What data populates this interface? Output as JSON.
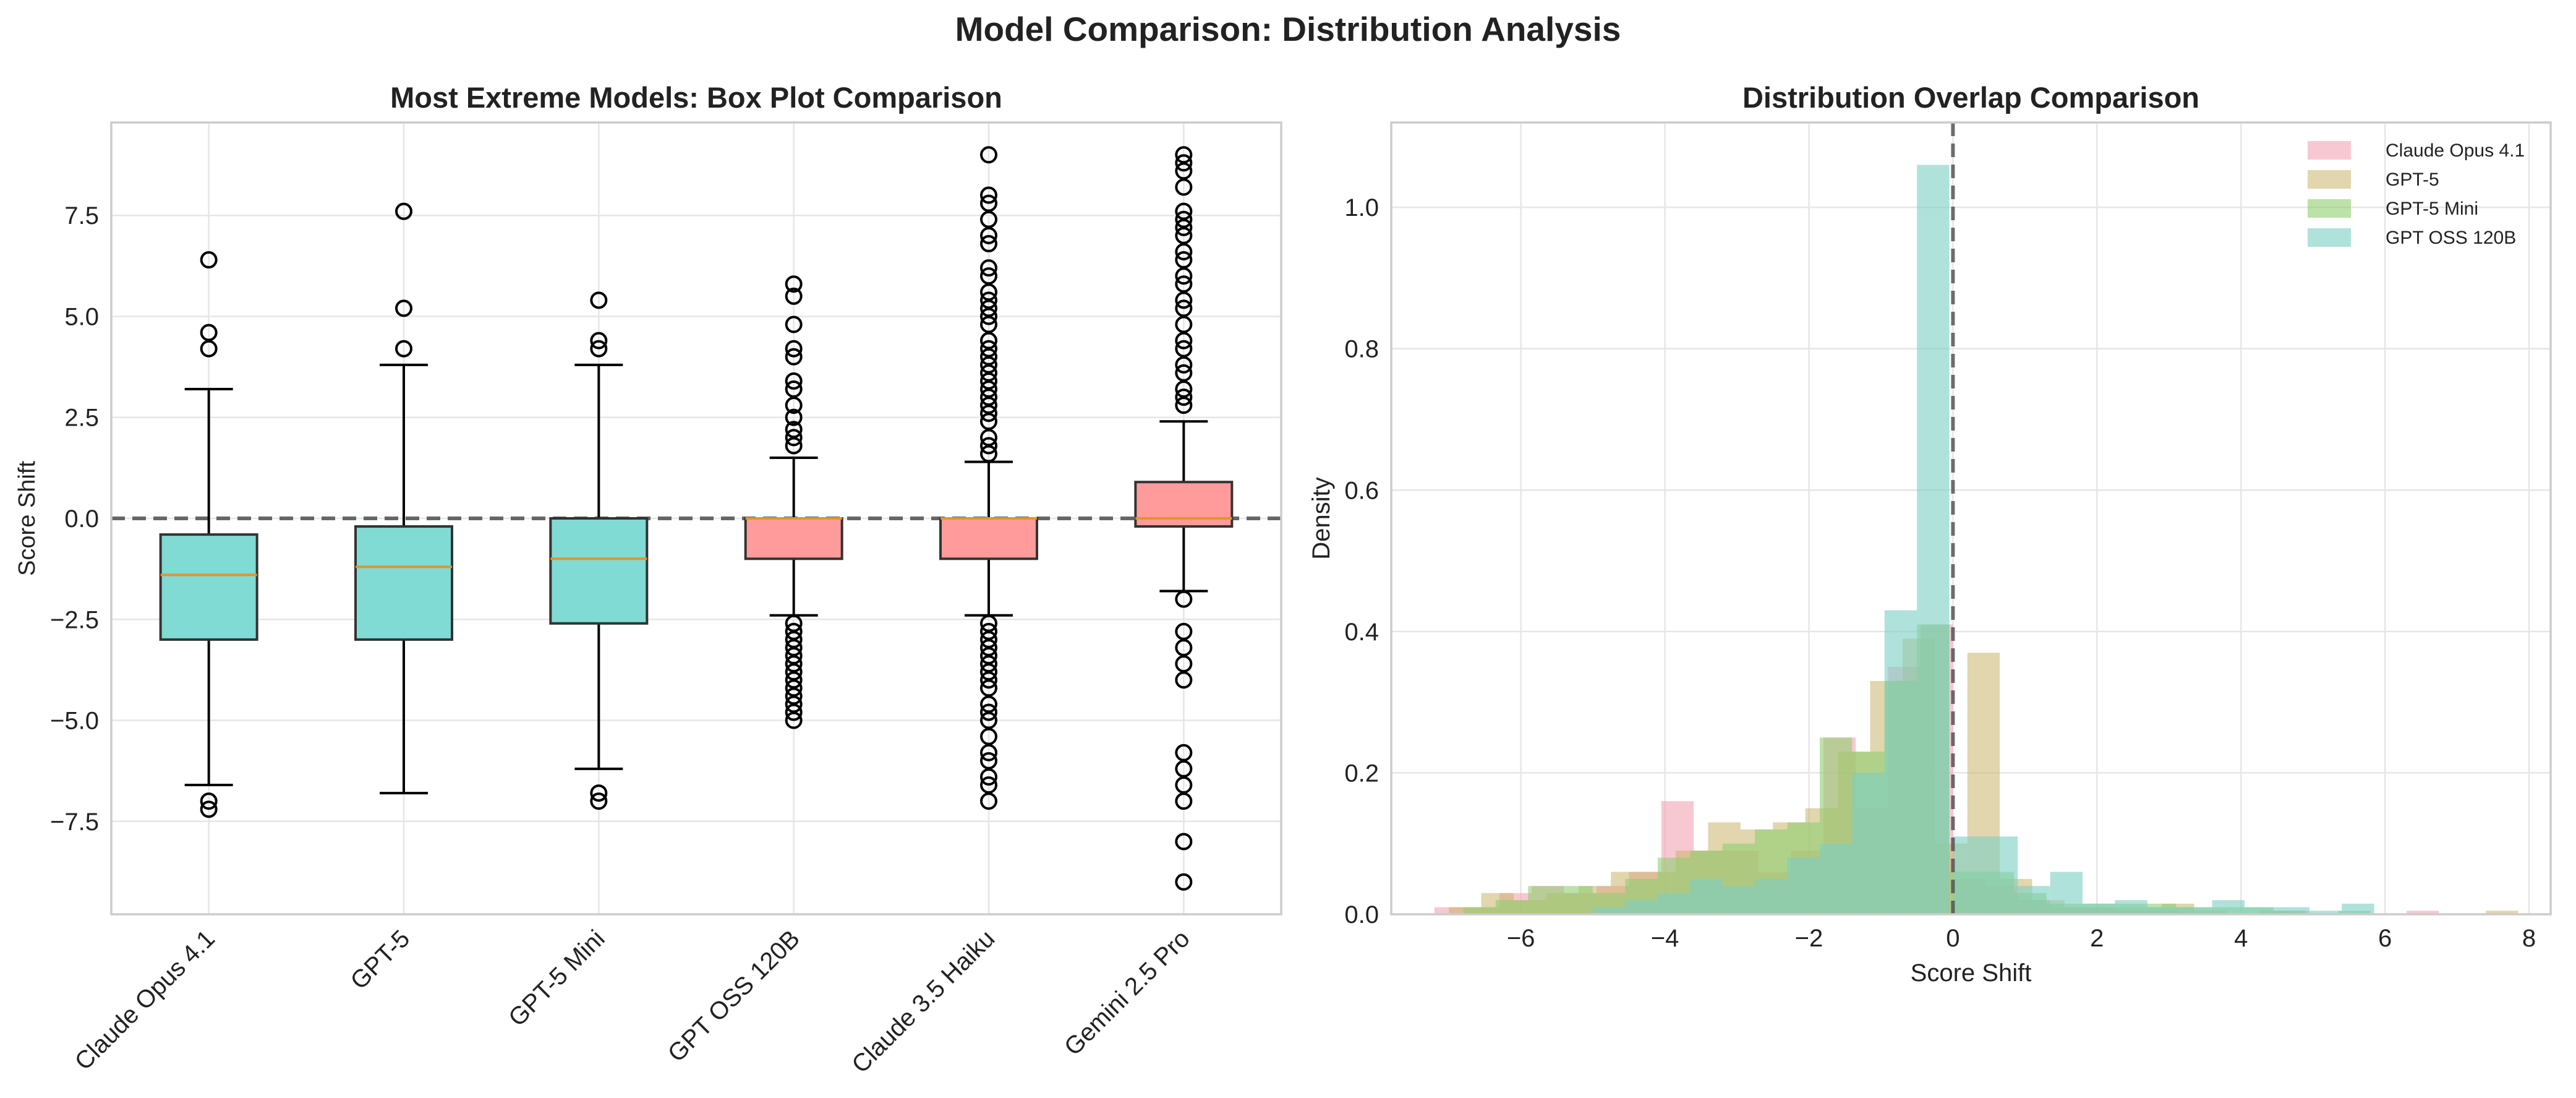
{
  "figure_title": "Model Comparison: Distribution Analysis",
  "chart_data": [
    {
      "type": "box",
      "title": "Most Extreme Models: Box Plot Comparison",
      "xlabel": "",
      "ylabel": "Score Shift",
      "ylim": [
        -9.8,
        9.8
      ],
      "yticks": [
        7.5,
        5.0,
        2.5,
        0.0,
        -2.5,
        -5.0,
        -7.5
      ],
      "ytick_labels": [
        "7.5",
        "5.0",
        "2.5",
        "0.0",
        "−2.5",
        "−5.0",
        "−7.5"
      ],
      "reference_line": 0,
      "grid": true,
      "colors": {
        "box_a": "#7fdbd3",
        "box_b": "#ff9b9b",
        "median": "#e0952e",
        "edge": "#333333",
        "ref": "#666666"
      },
      "boxes": [
        {
          "category": "Claude Opus 4.1",
          "q1": -3.0,
          "median": -1.4,
          "q3": -0.4,
          "whisker_low": -6.6,
          "whisker_high": 3.2,
          "color": "box_a",
          "outliers": [
            6.4,
            4.6,
            4.2,
            -7.0,
            -7.2
          ]
        },
        {
          "category": "GPT-5",
          "q1": -3.0,
          "median": -1.2,
          "q3": -0.2,
          "whisker_low": -6.8,
          "whisker_high": 3.8,
          "color": "box_a",
          "outliers": [
            7.6,
            5.2,
            4.2
          ]
        },
        {
          "category": "GPT-5 Mini",
          "q1": -2.6,
          "median": -1.0,
          "q3": 0.0,
          "whisker_low": -6.2,
          "whisker_high": 3.8,
          "color": "box_a",
          "outliers": [
            5.4,
            4.4,
            4.2,
            -6.8,
            -7.0
          ]
        },
        {
          "category": "GPT OSS 120B",
          "q1": -1.0,
          "median": 0.0,
          "q3": 0.0,
          "whisker_low": -2.4,
          "whisker_high": 1.5,
          "color": "box_b",
          "outliers": [
            5.8,
            5.5,
            4.8,
            4.2,
            4.0,
            3.4,
            3.2,
            2.8,
            2.5,
            2.2,
            2.0,
            1.8,
            -2.6,
            -2.8,
            -3.0,
            -3.2,
            -3.4,
            -3.6,
            -3.8,
            -4.0,
            -4.2,
            -4.4,
            -4.6,
            -4.8,
            -5.0
          ]
        },
        {
          "category": "Claude 3.5 Haiku",
          "q1": -1.0,
          "median": 0.0,
          "q3": 0.0,
          "whisker_low": -2.4,
          "whisker_high": 1.4,
          "color": "box_b",
          "outliers": [
            9.0,
            8.0,
            7.8,
            7.4,
            7.0,
            6.8,
            6.2,
            6.0,
            5.6,
            5.4,
            5.2,
            5.0,
            4.8,
            4.4,
            4.2,
            4.0,
            3.8,
            3.6,
            3.4,
            3.2,
            3.0,
            2.8,
            2.6,
            2.4,
            2.0,
            1.8,
            1.6,
            -2.6,
            -2.8,
            -3.0,
            -3.2,
            -3.4,
            -3.6,
            -3.8,
            -4.0,
            -4.2,
            -4.6,
            -4.8,
            -5.0,
            -5.4,
            -5.8,
            -6.0,
            -6.4,
            -6.6,
            -7.0
          ]
        },
        {
          "category": "Gemini 2.5 Pro",
          "q1": -0.2,
          "median": 0.0,
          "q3": 0.9,
          "whisker_low": -1.8,
          "whisker_high": 2.4,
          "color": "box_b",
          "outliers": [
            9.0,
            8.8,
            8.6,
            8.2,
            7.6,
            7.4,
            7.2,
            7.0,
            6.6,
            6.4,
            6.0,
            5.8,
            5.4,
            5.2,
            4.8,
            4.4,
            4.2,
            3.8,
            3.6,
            3.2,
            3.0,
            2.8,
            -2.0,
            -2.8,
            -3.2,
            -3.6,
            -4.0,
            -5.8,
            -6.2,
            -6.6,
            -7.0,
            -8.0,
            -9.0
          ]
        }
      ]
    },
    {
      "type": "histogram",
      "title": "Distribution Overlap Comparison",
      "xlabel": "Score Shift",
      "ylabel": "Density",
      "xlim": [
        -7.8,
        8.3
      ],
      "ylim": [
        0,
        1.12
      ],
      "xticks": [
        -6,
        -4,
        -2,
        0,
        2,
        4,
        6,
        8
      ],
      "xtick_labels": [
        "−6",
        "−4",
        "−2",
        "0",
        "2",
        "4",
        "6",
        "8"
      ],
      "yticks": [
        0.0,
        0.2,
        0.4,
        0.6,
        0.8,
        1.0
      ],
      "ytick_labels": [
        "0.0",
        "0.2",
        "0.4",
        "0.6",
        "0.8",
        "1.0"
      ],
      "reference_line": 0,
      "grid": true,
      "legend_position": "top-right",
      "series": [
        {
          "name": "Claude Opus 4.1",
          "color": "#f4a3b4",
          "opacity": 0.6,
          "bin_width": 0.45,
          "bins": [
            [
              -7.2,
              0.01
            ],
            [
              -6.75,
              0.01
            ],
            [
              -6.3,
              0.03
            ],
            [
              -5.85,
              0.04
            ],
            [
              -5.4,
              0.03
            ],
            [
              -4.95,
              0.04
            ],
            [
              -4.5,
              0.06
            ],
            [
              -4.05,
              0.16
            ],
            [
              -3.6,
              0.09
            ],
            [
              -3.15,
              0.09
            ],
            [
              -2.7,
              0.06
            ],
            [
              -2.25,
              0.09
            ],
            [
              -1.8,
              0.25
            ],
            [
              -1.35,
              0.15
            ],
            [
              -0.9,
              0.35
            ],
            [
              -0.45,
              0.41
            ],
            [
              0.0,
              0.05
            ],
            [
              0.45,
              0.04
            ],
            [
              0.9,
              0.02
            ],
            [
              1.35,
              0.01
            ],
            [
              1.8,
              0.01
            ],
            [
              2.25,
              0.005
            ],
            [
              2.7,
              0.005
            ],
            [
              4.5,
              0.005
            ],
            [
              6.3,
              0.005
            ]
          ]
        },
        {
          "name": "GPT-5",
          "color": "#c9b56a",
          "opacity": 0.55,
          "bin_width": 0.45,
          "bins": [
            [
              -7.0,
              0.01
            ],
            [
              -6.55,
              0.03
            ],
            [
              -6.1,
              0.02
            ],
            [
              -5.65,
              0.03
            ],
            [
              -5.2,
              0.04
            ],
            [
              -4.75,
              0.06
            ],
            [
              -4.3,
              0.06
            ],
            [
              -3.85,
              0.09
            ],
            [
              -3.4,
              0.13
            ],
            [
              -2.95,
              0.12
            ],
            [
              -2.5,
              0.13
            ],
            [
              -2.05,
              0.15
            ],
            [
              -1.6,
              0.23
            ],
            [
              -1.15,
              0.33
            ],
            [
              -0.7,
              0.39
            ],
            [
              -0.25,
              0.1
            ],
            [
              0.2,
              0.37
            ],
            [
              0.65,
              0.05
            ],
            [
              1.1,
              0.02
            ],
            [
              1.55,
              0.01
            ],
            [
              2.0,
              0.01
            ],
            [
              2.45,
              0.01
            ],
            [
              2.9,
              0.015
            ],
            [
              3.35,
              0.005
            ],
            [
              4.25,
              0.005
            ],
            [
              7.4,
              0.005
            ]
          ]
        },
        {
          "name": "GPT-5 Mini",
          "color": "#8fce6f",
          "opacity": 0.6,
          "bin_width": 0.45,
          "bins": [
            [
              -6.8,
              0.01
            ],
            [
              -6.35,
              0.02
            ],
            [
              -5.9,
              0.04
            ],
            [
              -5.45,
              0.04
            ],
            [
              -5.0,
              0.03
            ],
            [
              -4.55,
              0.05
            ],
            [
              -4.1,
              0.08
            ],
            [
              -3.65,
              0.09
            ],
            [
              -3.2,
              0.1
            ],
            [
              -2.75,
              0.12
            ],
            [
              -2.3,
              0.13
            ],
            [
              -1.85,
              0.25
            ],
            [
              -1.4,
              0.23
            ],
            [
              -0.95,
              0.33
            ],
            [
              -0.5,
              0.41
            ],
            [
              -0.05,
              0.06
            ],
            [
              0.4,
              0.06
            ],
            [
              0.85,
              0.03
            ],
            [
              1.3,
              0.015
            ],
            [
              1.75,
              0.015
            ],
            [
              2.2,
              0.015
            ],
            [
              2.65,
              0.015
            ],
            [
              3.1,
              0.01
            ],
            [
              3.55,
              0.01
            ],
            [
              4.0,
              0.01
            ],
            [
              4.45,
              0.005
            ],
            [
              5.35,
              0.005
            ]
          ]
        },
        {
          "name": "GPT OSS 120B",
          "color": "#7ccfc5",
          "opacity": 0.6,
          "bin_width": 0.45,
          "bins": [
            [
              -5.0,
              0.01
            ],
            [
              -4.55,
              0.02
            ],
            [
              -4.1,
              0.03
            ],
            [
              -3.65,
              0.05
            ],
            [
              -3.2,
              0.04
            ],
            [
              -2.75,
              0.05
            ],
            [
              -2.3,
              0.08
            ],
            [
              -1.85,
              0.1
            ],
            [
              -1.4,
              0.2
            ],
            [
              -0.95,
              0.43
            ],
            [
              -0.5,
              1.06
            ],
            [
              0.0,
              0.11
            ],
            [
              0.45,
              0.11
            ],
            [
              0.9,
              0.04
            ],
            [
              1.35,
              0.06
            ],
            [
              1.8,
              0.015
            ],
            [
              2.25,
              0.02
            ],
            [
              2.7,
              0.01
            ],
            [
              3.15,
              0.01
            ],
            [
              3.6,
              0.02
            ],
            [
              4.05,
              0.01
            ],
            [
              4.5,
              0.01
            ],
            [
              4.95,
              0.005
            ],
            [
              5.4,
              0.015
            ]
          ]
        }
      ]
    }
  ]
}
